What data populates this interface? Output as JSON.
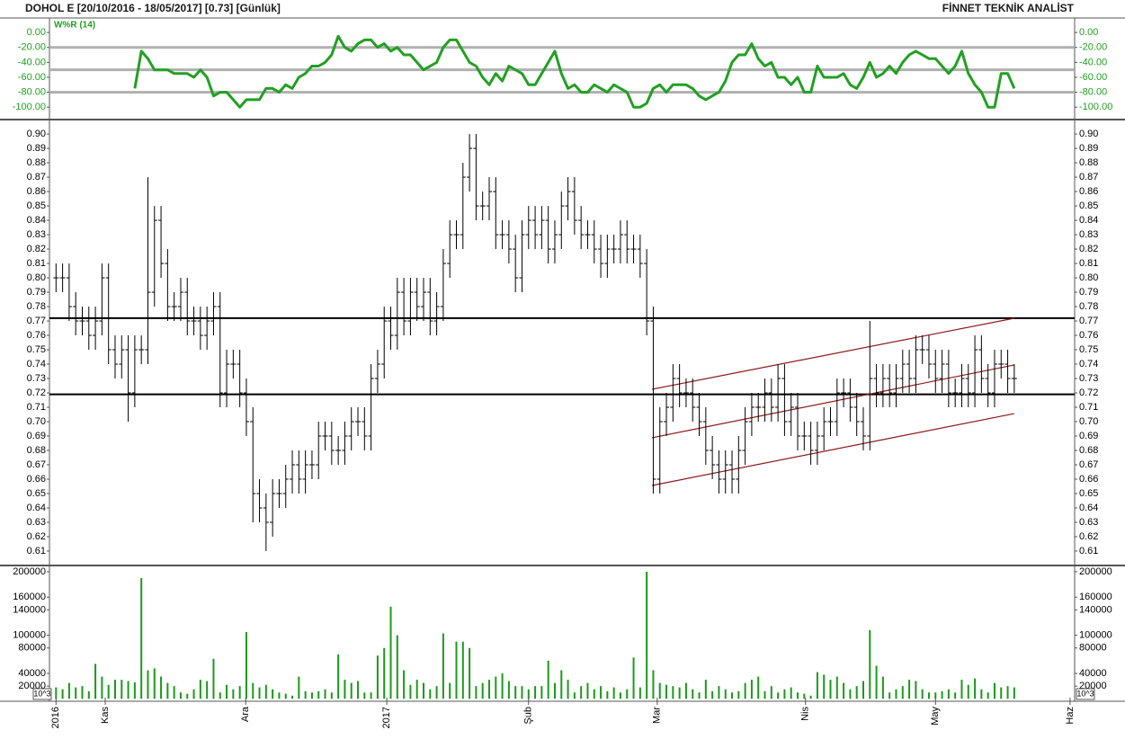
{
  "header": {
    "title": "DOHOL E  [20/10/2016 - 18/05/2017]  [0.73]  [Günlük]",
    "brand": "FİNNET TEKNİK ANALİST"
  },
  "chart_data": [
    {
      "type": "line",
      "title": "W%R (14)",
      "color": "#22a022",
      "ylim": [
        -113,
        17
      ],
      "yticks": [
        {
          "value": 0,
          "label": "0.00"
        },
        {
          "value": -20,
          "label": "-20.00"
        },
        {
          "value": -40,
          "label": "-40.00"
        },
        {
          "value": -60,
          "label": "-60.00"
        },
        {
          "value": -80,
          "label": "-80.00"
        },
        {
          "value": -100,
          "label": "-100.00"
        }
      ],
      "reference_lines": [
        -20,
        -50,
        -80
      ],
      "values": [
        null,
        null,
        null,
        null,
        null,
        null,
        null,
        null,
        null,
        null,
        null,
        null,
        -75,
        -25,
        -35,
        -50,
        -50,
        -50,
        -55,
        -55,
        -55,
        -60,
        -50,
        -60,
        -85,
        -80,
        -80,
        -90,
        -100,
        -90,
        -90,
        -90,
        -75,
        -75,
        -80,
        -70,
        -75,
        -60,
        -55,
        -45,
        -45,
        -40,
        -30,
        -5,
        -20,
        -25,
        -15,
        -10,
        -10,
        -20,
        -15,
        -25,
        -20,
        -30,
        -30,
        -40,
        -50,
        -45,
        -40,
        -20,
        -10,
        -10,
        -25,
        -40,
        -45,
        -60,
        -70,
        -55,
        -65,
        -45,
        -50,
        -55,
        -70,
        -70,
        -55,
        -40,
        -25,
        -55,
        -75,
        -70,
        -80,
        -80,
        -70,
        -75,
        -80,
        -70,
        -75,
        -80,
        -100,
        -100,
        -95,
        -75,
        -70,
        -80,
        -70,
        -70,
        -70,
        -75,
        -85,
        -90,
        -85,
        -80,
        -65,
        -40,
        -30,
        -30,
        -15,
        -35,
        -45,
        -40,
        -60,
        -60,
        -70,
        -60,
        -80,
        -80,
        -45,
        -60,
        -60,
        -60,
        -55,
        -70,
        -75,
        -60,
        -40,
        -60,
        -55,
        -45,
        -55,
        -40,
        -30,
        -25,
        -30,
        -35,
        -35,
        -45,
        -55,
        -45,
        -25,
        -55,
        -70,
        -80,
        -100,
        -100,
        -55,
        -55,
        -75
      ]
    },
    {
      "type": "ohlc",
      "color": "#000000",
      "ylim": [
        0.6006,
        0.9088
      ],
      "yticks": [
        0.61,
        0.62,
        0.63,
        0.64,
        0.65,
        0.66,
        0.67,
        0.68,
        0.69,
        {
          "value": 0.7,
          "label": "0.70"
        },
        0.71,
        0.72,
        0.73,
        0.74,
        0.75,
        0.76,
        0.77,
        0.78,
        0.79,
        {
          "value": 0.8,
          "label": "0.80"
        },
        0.81,
        0.82,
        0.83,
        0.84,
        0.85,
        0.86,
        0.87,
        0.88,
        0.89,
        {
          "value": 0.9,
          "label": "0.90"
        }
      ],
      "reference_lines": [
        0.772,
        0.719
      ],
      "channel_color": "#8b1a1a",
      "channel": [
        {
          "x": [
            90.8,
            146
          ],
          "y": [
            0.7225,
            0.7719
          ]
        },
        {
          "x": [
            90.8,
            146
          ],
          "y": [
            0.6888,
            0.7394
          ]
        },
        {
          "x": [
            90.8,
            146
          ],
          "y": [
            0.6556,
            0.7056
          ]
        }
      ],
      "open": [
        0.8,
        0.8,
        0.8,
        0.78,
        0.77,
        0.77,
        0.76,
        0.77,
        0.8,
        0.75,
        0.74,
        0.75,
        0.72,
        0.75,
        0.75,
        0.79,
        0.84,
        0.81,
        0.78,
        0.78,
        0.79,
        0.77,
        0.77,
        0.76,
        0.77,
        0.78,
        0.72,
        0.74,
        0.74,
        0.72,
        0.7,
        0.65,
        0.64,
        0.63,
        0.65,
        0.65,
        0.66,
        0.67,
        0.66,
        0.67,
        0.67,
        0.69,
        0.69,
        0.68,
        0.68,
        0.69,
        0.7,
        0.7,
        0.69,
        0.73,
        0.74,
        0.77,
        0.76,
        0.79,
        0.77,
        0.79,
        0.78,
        0.79,
        0.77,
        0.78,
        0.81,
        0.83,
        0.83,
        0.87,
        0.89,
        0.85,
        0.85,
        0.86,
        0.83,
        0.83,
        0.82,
        0.8,
        0.83,
        0.84,
        0.83,
        0.84,
        0.82,
        0.83,
        0.85,
        0.86,
        0.84,
        0.83,
        0.83,
        0.82,
        0.81,
        0.82,
        0.82,
        0.83,
        0.82,
        0.82,
        0.81,
        0.77,
        0.66,
        0.7,
        0.71,
        0.73,
        0.72,
        0.72,
        0.71,
        0.7,
        0.68,
        0.67,
        0.66,
        0.67,
        0.66,
        0.68,
        0.7,
        0.71,
        0.71,
        0.72,
        0.71,
        0.73,
        0.7,
        0.71,
        0.69,
        0.69,
        0.68,
        0.69,
        0.7,
        0.7,
        0.72,
        0.72,
        0.71,
        0.7,
        0.69,
        0.73,
        0.72,
        0.73,
        0.72,
        0.73,
        0.74,
        0.73,
        0.75,
        0.75,
        0.74,
        0.73,
        0.74,
        0.72,
        0.72,
        0.73,
        0.72,
        0.75,
        0.73,
        0.72,
        0.74,
        0.74,
        0.73
      ],
      "high": [
        0.81,
        0.81,
        0.81,
        0.79,
        0.78,
        0.78,
        0.78,
        0.81,
        0.81,
        0.76,
        0.76,
        0.76,
        0.76,
        0.76,
        0.87,
        0.85,
        0.85,
        0.82,
        0.79,
        0.8,
        0.8,
        0.78,
        0.78,
        0.78,
        0.79,
        0.79,
        0.75,
        0.75,
        0.75,
        0.73,
        0.71,
        0.66,
        0.65,
        0.66,
        0.66,
        0.67,
        0.68,
        0.68,
        0.68,
        0.68,
        0.7,
        0.7,
        0.7,
        0.69,
        0.7,
        0.71,
        0.71,
        0.71,
        0.74,
        0.75,
        0.78,
        0.78,
        0.8,
        0.8,
        0.8,
        0.8,
        0.8,
        0.8,
        0.79,
        0.82,
        0.84,
        0.84,
        0.88,
        0.9,
        0.9,
        0.86,
        0.87,
        0.87,
        0.84,
        0.84,
        0.83,
        0.84,
        0.85,
        0.85,
        0.85,
        0.85,
        0.84,
        0.86,
        0.87,
        0.87,
        0.85,
        0.84,
        0.84,
        0.83,
        0.83,
        0.83,
        0.84,
        0.84,
        0.83,
        0.83,
        0.82,
        0.78,
        0.71,
        0.72,
        0.74,
        0.74,
        0.73,
        0.73,
        0.72,
        0.71,
        0.69,
        0.68,
        0.68,
        0.68,
        0.69,
        0.71,
        0.72,
        0.72,
        0.73,
        0.73,
        0.74,
        0.74,
        0.72,
        0.72,
        0.7,
        0.7,
        0.7,
        0.71,
        0.71,
        0.73,
        0.73,
        0.73,
        0.72,
        0.71,
        0.77,
        0.74,
        0.74,
        0.74,
        0.74,
        0.75,
        0.75,
        0.76,
        0.76,
        0.76,
        0.75,
        0.75,
        0.75,
        0.73,
        0.74,
        0.74,
        0.76,
        0.76,
        0.74,
        0.75,
        0.75,
        0.75,
        0.74
      ],
      "low": [
        0.79,
        0.79,
        0.77,
        0.76,
        0.76,
        0.75,
        0.75,
        0.76,
        0.74,
        0.73,
        0.73,
        0.7,
        0.71,
        0.74,
        0.74,
        0.78,
        0.8,
        0.77,
        0.77,
        0.77,
        0.76,
        0.76,
        0.75,
        0.75,
        0.76,
        0.71,
        0.71,
        0.73,
        0.71,
        0.69,
        0.63,
        0.63,
        0.61,
        0.62,
        0.64,
        0.64,
        0.65,
        0.65,
        0.65,
        0.66,
        0.66,
        0.68,
        0.67,
        0.67,
        0.67,
        0.68,
        0.69,
        0.68,
        0.68,
        0.72,
        0.73,
        0.75,
        0.75,
        0.76,
        0.76,
        0.77,
        0.77,
        0.76,
        0.76,
        0.77,
        0.8,
        0.82,
        0.82,
        0.86,
        0.84,
        0.84,
        0.84,
        0.82,
        0.82,
        0.81,
        0.79,
        0.79,
        0.82,
        0.82,
        0.82,
        0.81,
        0.81,
        0.82,
        0.84,
        0.83,
        0.82,
        0.82,
        0.81,
        0.8,
        0.8,
        0.81,
        0.81,
        0.81,
        0.81,
        0.8,
        0.76,
        0.65,
        0.65,
        0.69,
        0.7,
        0.71,
        0.71,
        0.7,
        0.69,
        0.67,
        0.66,
        0.65,
        0.65,
        0.65,
        0.65,
        0.67,
        0.69,
        0.7,
        0.7,
        0.7,
        0.7,
        0.69,
        0.69,
        0.68,
        0.68,
        0.67,
        0.67,
        0.68,
        0.69,
        0.69,
        0.71,
        0.7,
        0.69,
        0.68,
        0.68,
        0.71,
        0.71,
        0.71,
        0.71,
        0.72,
        0.72,
        0.72,
        0.74,
        0.73,
        0.72,
        0.72,
        0.71,
        0.71,
        0.71,
        0.71,
        0.71,
        0.72,
        0.71,
        0.71,
        0.73,
        0.72,
        0.72
      ],
      "close": [
        0.8,
        0.8,
        0.78,
        0.77,
        0.77,
        0.76,
        0.77,
        0.8,
        0.75,
        0.74,
        0.75,
        0.72,
        0.75,
        0.75,
        0.79,
        0.84,
        0.81,
        0.78,
        0.78,
        0.79,
        0.77,
        0.77,
        0.76,
        0.77,
        0.78,
        0.72,
        0.74,
        0.74,
        0.72,
        0.7,
        0.65,
        0.64,
        0.63,
        0.65,
        0.65,
        0.66,
        0.67,
        0.66,
        0.67,
        0.67,
        0.69,
        0.69,
        0.68,
        0.68,
        0.69,
        0.7,
        0.7,
        0.69,
        0.73,
        0.74,
        0.77,
        0.76,
        0.79,
        0.77,
        0.79,
        0.78,
        0.79,
        0.77,
        0.78,
        0.81,
        0.83,
        0.83,
        0.87,
        0.89,
        0.85,
        0.85,
        0.86,
        0.83,
        0.83,
        0.82,
        0.8,
        0.83,
        0.84,
        0.83,
        0.84,
        0.82,
        0.83,
        0.85,
        0.86,
        0.84,
        0.83,
        0.83,
        0.82,
        0.81,
        0.82,
        0.82,
        0.83,
        0.82,
        0.82,
        0.81,
        0.77,
        0.66,
        0.7,
        0.71,
        0.73,
        0.72,
        0.72,
        0.71,
        0.7,
        0.68,
        0.67,
        0.66,
        0.67,
        0.66,
        0.68,
        0.7,
        0.71,
        0.71,
        0.72,
        0.71,
        0.73,
        0.7,
        0.71,
        0.69,
        0.69,
        0.68,
        0.69,
        0.7,
        0.7,
        0.72,
        0.72,
        0.71,
        0.7,
        0.69,
        0.73,
        0.72,
        0.73,
        0.72,
        0.73,
        0.74,
        0.73,
        0.75,
        0.75,
        0.74,
        0.73,
        0.74,
        0.72,
        0.72,
        0.73,
        0.72,
        0.75,
        0.73,
        0.72,
        0.74,
        0.74,
        0.73,
        0.73
      ]
    },
    {
      "type": "bar",
      "color": "#1a9a1a",
      "ylim": [
        -3800,
        208400
      ],
      "unit_label": "10^3",
      "yticks": [
        20000,
        40000,
        80000,
        100000,
        140000,
        160000,
        200000
      ],
      "xlim": [
        -1,
        155.2
      ],
      "xticks": [
        {
          "value": 0,
          "label": "2016"
        },
        {
          "value": 7.5,
          "label": "Kas"
        },
        {
          "value": 28.9,
          "label": "Ara"
        },
        {
          "value": 50.4,
          "label": "2017"
        },
        {
          "value": 72,
          "label": "Şub"
        },
        {
          "value": 91.6,
          "label": "Mar"
        },
        {
          "value": 114.2,
          "label": "Nis"
        },
        {
          "value": 134,
          "label": "May"
        },
        {
          "value": 154.5,
          "label": "Haz"
        }
      ],
      "values": [
        18000,
        15000,
        25000,
        18000,
        20000,
        12000,
        55000,
        35000,
        22000,
        30000,
        30000,
        28000,
        26000,
        190000,
        45000,
        48000,
        35000,
        25000,
        20000,
        10000,
        8000,
        15000,
        30000,
        28000,
        63000,
        10000,
        22000,
        15000,
        20000,
        105000,
        25000,
        18000,
        22000,
        15000,
        10000,
        8000,
        5000,
        35000,
        12000,
        10000,
        12000,
        15000,
        10000,
        70000,
        30000,
        25000,
        28000,
        10000,
        10000,
        68000,
        80000,
        145000,
        100000,
        45000,
        22000,
        30000,
        25000,
        15000,
        20000,
        103000,
        25000,
        90000,
        90000,
        80000,
        20000,
        25000,
        30000,
        35000,
        40000,
        28000,
        20000,
        20000,
        15000,
        20000,
        20000,
        60000,
        25000,
        45000,
        30000,
        10000,
        20000,
        25000,
        15000,
        20000,
        12000,
        18000,
        10000,
        15000,
        65000,
        18000,
        200000,
        45000,
        25000,
        22000,
        20000,
        18000,
        25000,
        15000,
        10000,
        30000,
        12000,
        20000,
        15000,
        10000,
        12000,
        25000,
        30000,
        35000,
        12000,
        20000,
        10000,
        15000,
        18000,
        10000,
        8000,
        5000,
        42000,
        38000,
        30000,
        35000,
        25000,
        15000,
        20000,
        28000,
        108000,
        52000,
        35000,
        10000,
        15000,
        20000,
        30000,
        28000,
        15000,
        10000,
        10000,
        12000,
        15000,
        10000,
        30000,
        22000,
        32000,
        15000,
        10000,
        25000,
        18000,
        20000,
        18000
      ]
    }
  ]
}
